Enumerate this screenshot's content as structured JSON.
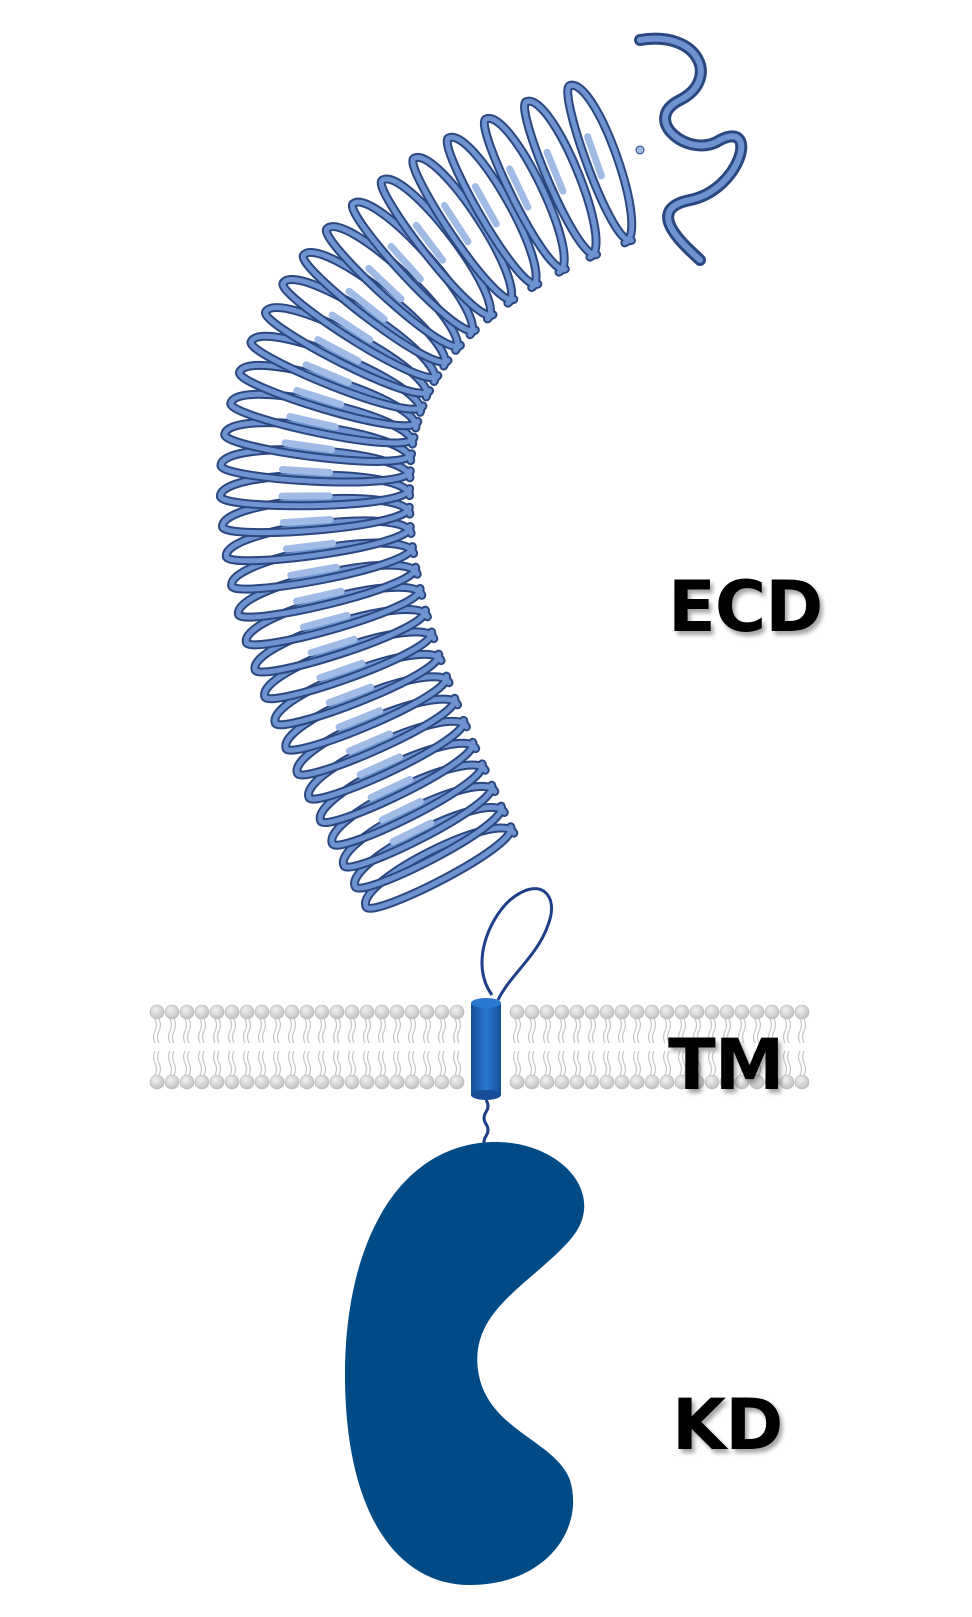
{
  "labels": {
    "ecd": "ECD",
    "tm": "TM",
    "kd": "KD"
  },
  "colors": {
    "protein_ribbon": "#4f74b8",
    "protein_ribbon_dark": "#2f4f8e",
    "protein_ribbon_light": "#a9c3ea",
    "tm_helix": "#1e5fae",
    "kinase_domain": "#004b85",
    "membrane_head": "#d3d3d3",
    "linker": "#1e3f8a",
    "label_text": "#000000"
  },
  "components": [
    {
      "id": "ecd",
      "description_icon": "protein-ribbon-structure"
    },
    {
      "id": "tm",
      "description_icon": "membrane-helix-cylinder"
    },
    {
      "id": "kd",
      "description_icon": "kidney-shaped-domain"
    }
  ]
}
